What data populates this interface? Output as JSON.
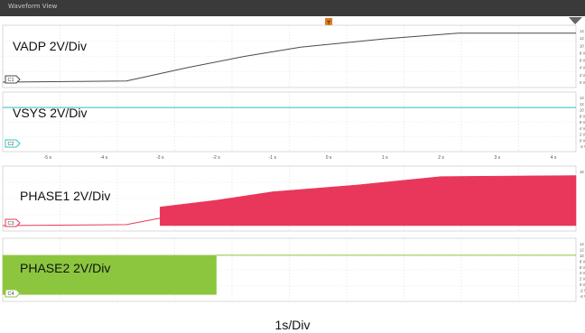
{
  "window": {
    "title": "Waveform View",
    "trigger_marker": "T"
  },
  "chart_data": {
    "type": "line",
    "xlabel": "1s/Div",
    "time_ticks": [
      "-5 s",
      "-4 s",
      "-3 s",
      "-2 s",
      "-1 s",
      "0 s",
      "1 s",
      "2 s",
      "3 s",
      "4 s"
    ],
    "xlim": [
      -5.8,
      4.4
    ],
    "channels": [
      {
        "badge": "C1",
        "name": "VADP 2V/Div",
        "color": "#4a4a4a",
        "kind": "trace",
        "ylim": [
          0,
          14
        ],
        "y_ticks": [
          "14 V",
          "12 V",
          "10 V",
          "8 V",
          "6 V",
          "4 V",
          "2 V",
          "0 V"
        ],
        "points": [
          [
            -5.8,
            0
          ],
          [
            -3.6,
            0.3
          ],
          [
            -2.5,
            4
          ],
          [
            -1.5,
            7
          ],
          [
            -0.5,
            9.5
          ],
          [
            1.0,
            11.8
          ],
          [
            2.3,
            13.3
          ],
          [
            4.4,
            13.3
          ]
        ]
      },
      {
        "badge": "C2",
        "name": "VSYS 2V/Div",
        "color": "#2ec4c4",
        "kind": "trace",
        "ylim": [
          -3,
          14
        ],
        "y_ticks": [
          "14 V",
          "12 V",
          "10 V",
          "8 V",
          "6 V",
          "4 V",
          "2 V",
          "0 V",
          "-2 V"
        ],
        "points": [
          [
            -5.8,
            10.5
          ],
          [
            4.4,
            10.5
          ]
        ]
      },
      {
        "badge": "C3",
        "name": "PHASE1 2V/Div",
        "color": "#e8375a",
        "kind": "switching",
        "ylim": [
          0,
          16
        ],
        "y_ticks": [
          "16 V"
        ],
        "trace": [
          [
            -5.8,
            0
          ],
          [
            -3.6,
            0.3
          ],
          [
            -3.0,
            2.2
          ]
        ],
        "band_top": [
          [
            -3.0,
            5.5
          ],
          [
            -2.0,
            7.5
          ],
          [
            -1.0,
            10
          ],
          [
            0.5,
            12
          ],
          [
            2.0,
            14.5
          ],
          [
            4.4,
            14.8
          ]
        ],
        "band_bottom": 0
      },
      {
        "badge": "C4",
        "name": "PHASE2 2V/Div",
        "color": "#8cc63f",
        "kind": "switching",
        "ylim": [
          -4,
          14
        ],
        "y_ticks": [
          "14 V",
          "12 V",
          "10 V",
          "8 V",
          "6 V",
          "4 V",
          "2 V",
          "0 V",
          "-2 V",
          "-4 V"
        ],
        "trace": [
          [
            -2.0,
            10
          ],
          [
            4.4,
            10
          ]
        ],
        "band_top": [
          [
            -5.8,
            10
          ],
          [
            -2.0,
            10
          ]
        ],
        "band_bottom": -3.5
      }
    ]
  }
}
